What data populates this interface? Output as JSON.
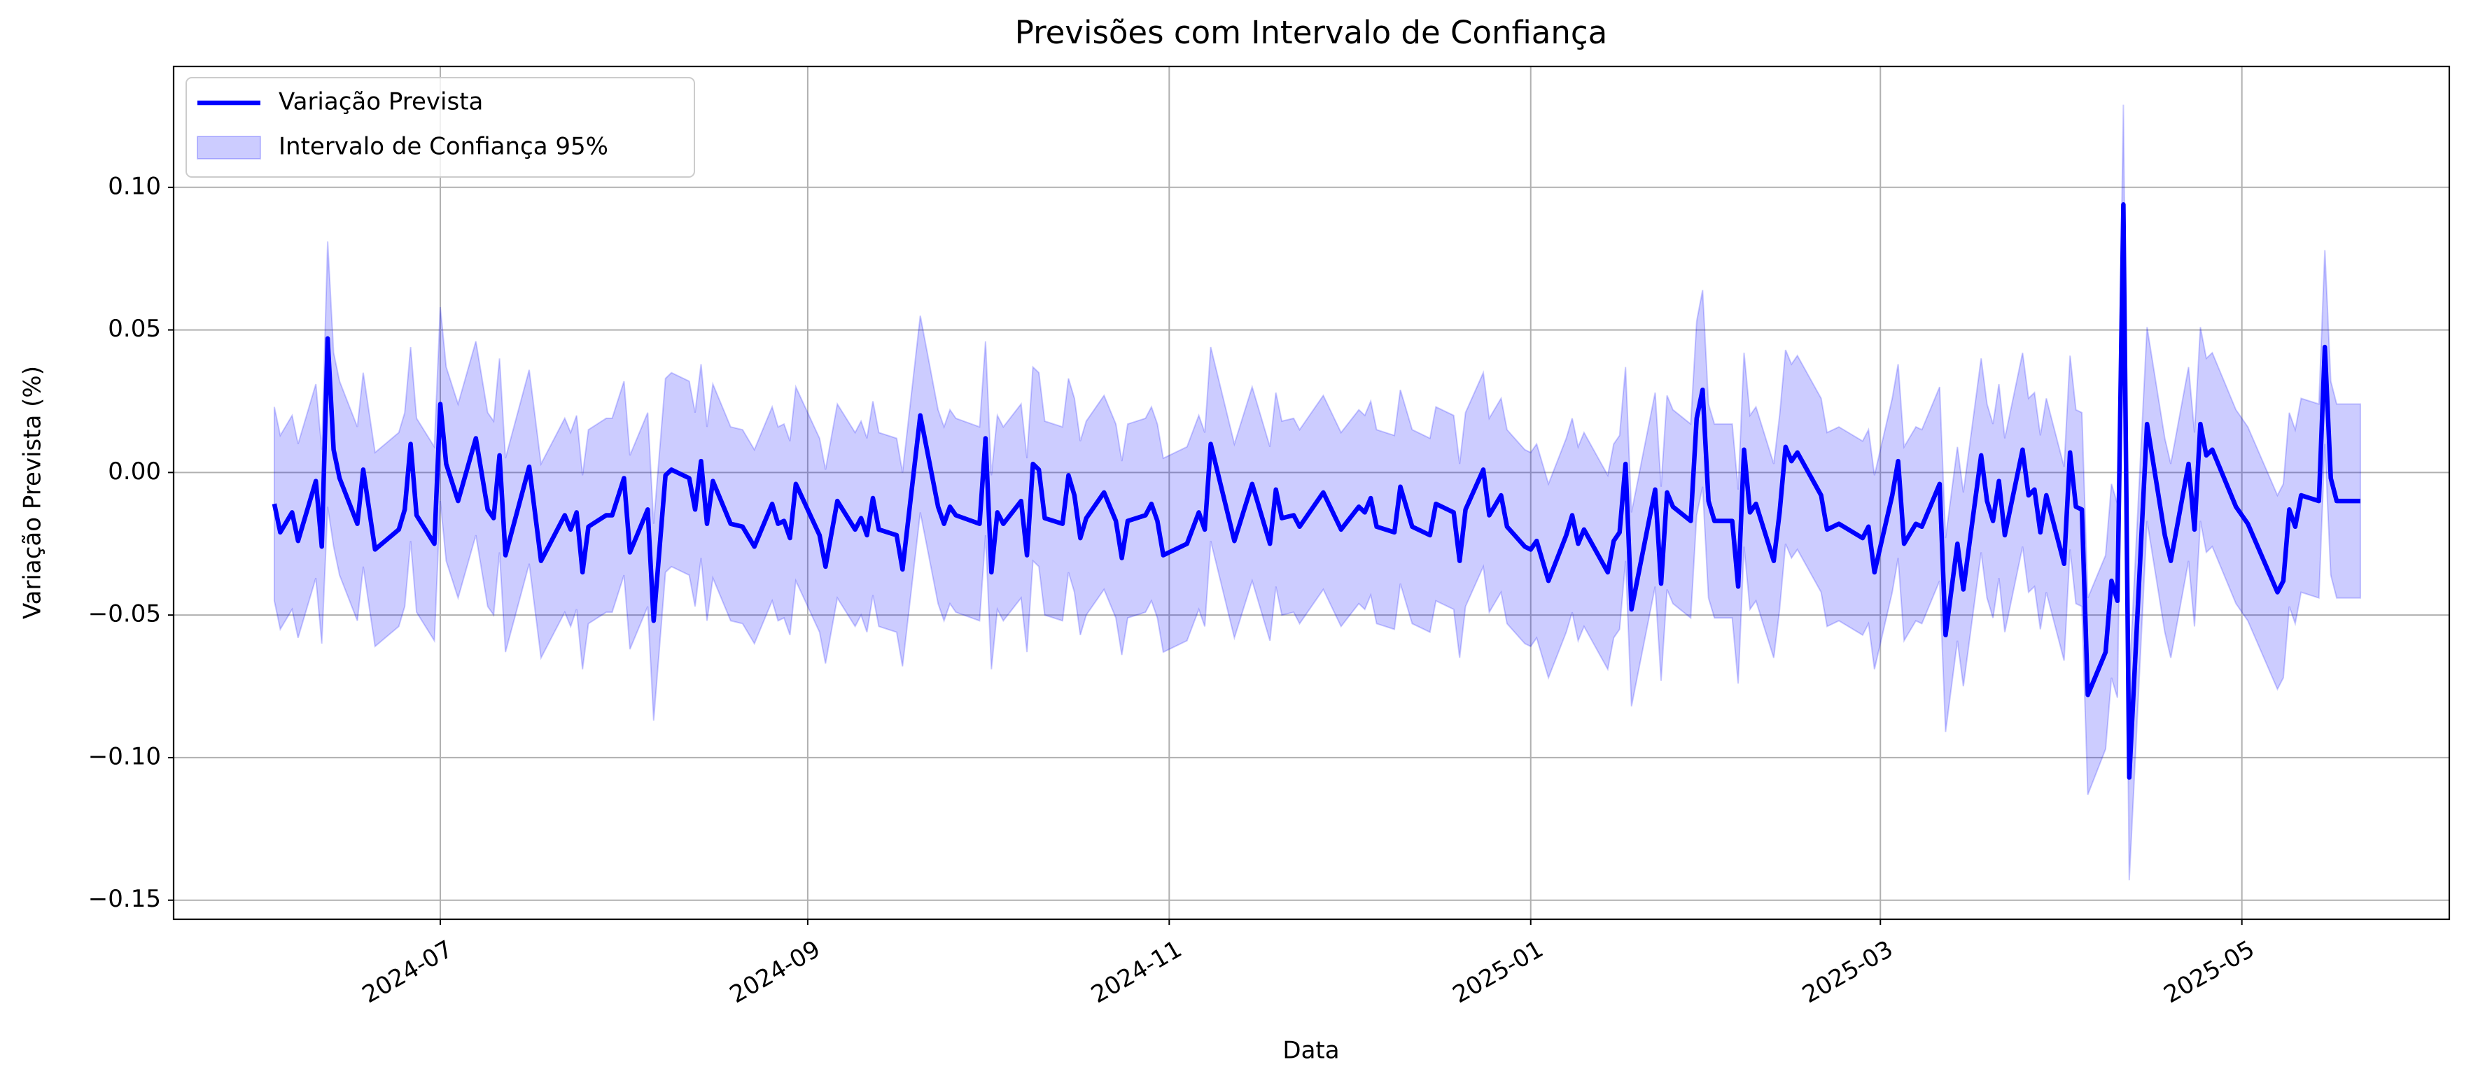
{
  "chart_data": {
    "type": "line",
    "title": "Previsões com Intervalo de Confiança",
    "x_label": "Data",
    "y_label": "Variação Prevista (%)",
    "x": [
      "2024-06-03",
      "2024-06-04",
      "2024-06-06",
      "2024-06-07",
      "2024-06-10",
      "2024-06-11",
      "2024-06-12",
      "2024-06-13",
      "2024-06-14",
      "2024-06-17",
      "2024-06-18",
      "2024-06-20",
      "2024-06-24",
      "2024-06-25",
      "2024-06-26",
      "2024-06-27",
      "2024-06-30",
      "2024-07-01",
      "2024-07-02",
      "2024-07-04",
      "2024-07-07",
      "2024-07-09",
      "2024-07-10",
      "2024-07-11",
      "2024-07-12",
      "2024-07-16",
      "2024-07-18",
      "2024-07-22",
      "2024-07-23",
      "2024-07-24",
      "2024-07-25",
      "2024-07-26",
      "2024-07-29",
      "2024-07-30",
      "2024-08-01",
      "2024-08-02",
      "2024-08-05",
      "2024-08-06",
      "2024-08-08",
      "2024-08-09",
      "2024-08-12",
      "2024-08-13",
      "2024-08-14",
      "2024-08-15",
      "2024-08-16",
      "2024-08-19",
      "2024-08-21",
      "2024-08-23",
      "2024-08-26",
      "2024-08-27",
      "2024-08-28",
      "2024-08-29",
      "2024-08-30",
      "2024-09-03",
      "2024-09-04",
      "2024-09-06",
      "2024-09-09",
      "2024-09-10",
      "2024-09-11",
      "2024-09-12",
      "2024-09-13",
      "2024-09-16",
      "2024-09-17",
      "2024-09-20",
      "2024-09-23",
      "2024-09-24",
      "2024-09-25",
      "2024-09-26",
      "2024-09-30",
      "2024-10-01",
      "2024-10-02",
      "2024-10-03",
      "2024-10-04",
      "2024-10-07",
      "2024-10-08",
      "2024-10-09",
      "2024-10-10",
      "2024-10-11",
      "2024-10-14",
      "2024-10-15",
      "2024-10-16",
      "2024-10-17",
      "2024-10-18",
      "2024-10-21",
      "2024-10-23",
      "2024-10-24",
      "2024-10-25",
      "2024-10-28",
      "2024-10-29",
      "2024-10-30",
      "2024-10-31",
      "2024-11-04",
      "2024-11-06",
      "2024-11-07",
      "2024-11-08",
      "2024-11-12",
      "2024-11-15",
      "2024-11-18",
      "2024-11-19",
      "2024-11-20",
      "2024-11-22",
      "2024-11-23",
      "2024-11-27",
      "2024-11-30",
      "2024-12-03",
      "2024-12-04",
      "2024-12-05",
      "2024-12-06",
      "2024-12-09",
      "2024-12-10",
      "2024-12-12",
      "2024-12-15",
      "2024-12-16",
      "2024-12-19",
      "2024-12-20",
      "2024-12-21",
      "2024-12-24",
      "2024-12-25",
      "2024-12-27",
      "2024-12-28",
      "2024-12-31",
      "2025-01-01",
      "2025-01-02",
      "2025-01-04",
      "2025-01-07",
      "2025-01-08",
      "2025-01-09",
      "2025-01-10",
      "2025-01-14",
      "2025-01-15",
      "2025-01-16",
      "2025-01-17",
      "2025-01-18",
      "2025-01-22",
      "2025-01-23",
      "2025-01-24",
      "2025-01-25",
      "2025-01-28",
      "2025-01-29",
      "2025-01-30",
      "2025-01-31",
      "2025-02-01",
      "2025-02-04",
      "2025-02-05",
      "2025-02-06",
      "2025-02-07",
      "2025-02-08",
      "2025-02-11",
      "2025-02-12",
      "2025-02-13",
      "2025-02-14",
      "2025-02-15",
      "2025-02-19",
      "2025-02-20",
      "2025-02-22",
      "2025-02-26",
      "2025-02-27",
      "2025-02-28",
      "2025-03-03",
      "2025-03-04",
      "2025-03-05",
      "2025-03-07",
      "2025-03-08",
      "2025-03-11",
      "2025-03-12",
      "2025-03-14",
      "2025-03-15",
      "2025-03-18",
      "2025-03-19",
      "2025-03-20",
      "2025-03-21",
      "2025-03-22",
      "2025-03-25",
      "2025-03-26",
      "2025-03-27",
      "2025-03-28",
      "2025-03-29",
      "2025-04-01",
      "2025-04-02",
      "2025-04-03",
      "2025-04-04",
      "2025-04-05",
      "2025-04-08",
      "2025-04-09",
      "2025-04-10",
      "2025-04-11",
      "2025-04-12",
      "2025-04-15",
      "2025-04-18",
      "2025-04-19",
      "2025-04-22",
      "2025-04-23",
      "2025-04-24",
      "2025-04-25",
      "2025-04-26",
      "2025-04-30",
      "2025-05-02",
      "2025-05-07",
      "2025-05-08",
      "2025-05-09",
      "2025-05-10",
      "2025-05-11",
      "2025-05-14",
      "2025-05-15",
      "2025-05-16",
      "2025-05-17",
      "2025-05-21"
    ],
    "series": [
      {
        "name": "Variação Prevista",
        "color": "#0000ff",
        "values": [
          -0.011,
          -0.021,
          -0.014,
          -0.024,
          -0.003,
          -0.026,
          0.047,
          0.008,
          -0.002,
          -0.018,
          0.001,
          -0.027,
          -0.02,
          -0.013,
          0.01,
          -0.015,
          -0.025,
          0.024,
          0.003,
          -0.01,
          0.012,
          -0.013,
          -0.016,
          0.006,
          -0.029,
          0.002,
          -0.031,
          -0.015,
          -0.02,
          -0.014,
          -0.035,
          -0.019,
          -0.015,
          -0.015,
          -0.002,
          -0.028,
          -0.013,
          -0.052,
          -0.001,
          0.001,
          -0.002,
          -0.013,
          0.004,
          -0.018,
          -0.003,
          -0.018,
          -0.019,
          -0.026,
          -0.011,
          -0.018,
          -0.017,
          -0.023,
          -0.004,
          -0.022,
          -0.033,
          -0.01,
          -0.02,
          -0.016,
          -0.022,
          -0.009,
          -0.02,
          -0.022,
          -0.034,
          0.02,
          -0.012,
          -0.018,
          -0.012,
          -0.015,
          -0.018,
          0.012,
          -0.035,
          -0.014,
          -0.018,
          -0.01,
          -0.029,
          0.003,
          0.001,
          -0.016,
          -0.018,
          -0.001,
          -0.008,
          -0.023,
          -0.016,
          -0.007,
          -0.017,
          -0.03,
          -0.017,
          -0.015,
          -0.011,
          -0.017,
          -0.029,
          -0.025,
          -0.014,
          -0.02,
          0.01,
          -0.024,
          -0.004,
          -0.025,
          -0.006,
          -0.016,
          -0.015,
          -0.019,
          -0.007,
          -0.02,
          -0.012,
          -0.014,
          -0.009,
          -0.019,
          -0.021,
          -0.005,
          -0.019,
          -0.022,
          -0.011,
          -0.014,
          -0.031,
          -0.013,
          0.001,
          -0.015,
          -0.008,
          -0.019,
          -0.026,
          -0.027,
          -0.024,
          -0.038,
          -0.022,
          -0.015,
          -0.025,
          -0.02,
          -0.035,
          -0.024,
          -0.021,
          0.003,
          -0.048,
          -0.006,
          -0.039,
          -0.007,
          -0.012,
          -0.017,
          0.019,
          0.029,
          -0.01,
          -0.017,
          -0.017,
          -0.04,
          0.008,
          -0.014,
          -0.011,
          -0.031,
          -0.014,
          0.009,
          0.004,
          0.007,
          -0.008,
          -0.02,
          -0.018,
          -0.023,
          -0.019,
          -0.035,
          -0.008,
          0.004,
          -0.025,
          -0.018,
          -0.019,
          -0.004,
          -0.057,
          -0.025,
          -0.041,
          0.006,
          -0.01,
          -0.017,
          -0.003,
          -0.022,
          0.008,
          -0.008,
          -0.006,
          -0.021,
          -0.008,
          -0.032,
          0.007,
          -0.012,
          -0.013,
          -0.078,
          -0.063,
          -0.038,
          -0.045,
          0.094,
          -0.107,
          0.017,
          -0.022,
          -0.031,
          0.003,
          -0.02,
          0.017,
          0.006,
          0.008,
          -0.012,
          -0.018,
          -0.042,
          -0.038,
          -0.013,
          -0.019,
          -0.008,
          -0.01,
          0.044,
          -0.002,
          -0.01,
          -0.01
        ]
      }
    ],
    "band": {
      "name": "Intervalo de Confiança 95%",
      "color": "#0000ff",
      "upper": [
        0.023,
        0.013,
        0.02,
        0.01,
        0.031,
        0.008,
        0.081,
        0.042,
        0.032,
        0.016,
        0.035,
        0.007,
        0.014,
        0.021,
        0.044,
        0.019,
        0.009,
        0.058,
        0.037,
        0.024,
        0.046,
        0.021,
        0.018,
        0.04,
        0.005,
        0.036,
        0.003,
        0.019,
        0.014,
        0.02,
        -0.001,
        0.015,
        0.019,
        0.019,
        0.032,
        0.006,
        0.021,
        -0.018,
        0.033,
        0.035,
        0.032,
        0.021,
        0.038,
        0.016,
        0.031,
        0.016,
        0.015,
        0.008,
        0.023,
        0.016,
        0.017,
        0.011,
        0.03,
        0.012,
        0.001,
        0.024,
        0.014,
        0.018,
        0.012,
        0.025,
        0.014,
        0.012,
        0.0,
        0.055,
        0.022,
        0.016,
        0.022,
        0.019,
        0.016,
        0.046,
        -0.001,
        0.02,
        0.016,
        0.024,
        0.005,
        0.037,
        0.035,
        0.018,
        0.016,
        0.033,
        0.026,
        0.011,
        0.018,
        0.027,
        0.017,
        0.004,
        0.017,
        0.019,
        0.023,
        0.017,
        0.005,
        0.009,
        0.02,
        0.014,
        0.044,
        0.01,
        0.03,
        0.009,
        0.028,
        0.018,
        0.019,
        0.015,
        0.027,
        0.014,
        0.022,
        0.02,
        0.025,
        0.015,
        0.013,
        0.029,
        0.015,
        0.012,
        0.023,
        0.02,
        0.003,
        0.021,
        0.035,
        0.019,
        0.026,
        0.015,
        0.008,
        0.007,
        0.01,
        -0.004,
        0.012,
        0.019,
        0.009,
        0.014,
        -0.001,
        0.01,
        0.013,
        0.037,
        -0.014,
        0.028,
        -0.005,
        0.027,
        0.022,
        0.017,
        0.053,
        0.064,
        0.024,
        0.017,
        0.017,
        -0.006,
        0.042,
        0.02,
        0.023,
        0.003,
        0.02,
        0.043,
        0.038,
        0.041,
        0.026,
        0.014,
        0.016,
        0.011,
        0.015,
        -0.001,
        0.026,
        0.038,
        0.009,
        0.016,
        0.015,
        0.03,
        -0.023,
        0.009,
        -0.007,
        0.04,
        0.024,
        0.017,
        0.031,
        0.012,
        0.042,
        0.026,
        0.028,
        0.013,
        0.026,
        0.002,
        0.041,
        0.022,
        0.021,
        -0.044,
        -0.029,
        -0.004,
        -0.011,
        0.129,
        -0.073,
        0.051,
        0.012,
        0.003,
        0.037,
        0.014,
        0.051,
        0.04,
        0.042,
        0.022,
        0.016,
        -0.008,
        -0.004,
        0.021,
        0.015,
        0.026,
        0.024,
        0.078,
        0.032,
        0.024,
        0.024
      ],
      "lower": [
        -0.045,
        -0.055,
        -0.048,
        -0.058,
        -0.037,
        -0.06,
        -0.012,
        -0.026,
        -0.036,
        -0.052,
        -0.033,
        -0.061,
        -0.054,
        -0.047,
        -0.024,
        -0.049,
        -0.059,
        -0.01,
        -0.031,
        -0.044,
        -0.022,
        -0.047,
        -0.05,
        -0.028,
        -0.063,
        -0.032,
        -0.065,
        -0.049,
        -0.054,
        -0.048,
        -0.069,
        -0.053,
        -0.049,
        -0.049,
        -0.036,
        -0.062,
        -0.047,
        -0.087,
        -0.035,
        -0.033,
        -0.036,
        -0.047,
        -0.03,
        -0.052,
        -0.037,
        -0.052,
        -0.053,
        -0.06,
        -0.045,
        -0.052,
        -0.051,
        -0.057,
        -0.038,
        -0.056,
        -0.067,
        -0.044,
        -0.054,
        -0.05,
        -0.056,
        -0.043,
        -0.054,
        -0.056,
        -0.068,
        -0.014,
        -0.046,
        -0.052,
        -0.046,
        -0.049,
        -0.052,
        -0.022,
        -0.069,
        -0.048,
        -0.052,
        -0.044,
        -0.063,
        -0.031,
        -0.033,
        -0.05,
        -0.052,
        -0.035,
        -0.042,
        -0.057,
        -0.05,
        -0.041,
        -0.051,
        -0.064,
        -0.051,
        -0.049,
        -0.045,
        -0.051,
        -0.063,
        -0.059,
        -0.048,
        -0.054,
        -0.024,
        -0.058,
        -0.038,
        -0.059,
        -0.04,
        -0.05,
        -0.049,
        -0.053,
        -0.041,
        -0.054,
        -0.046,
        -0.048,
        -0.043,
        -0.053,
        -0.055,
        -0.039,
        -0.053,
        -0.056,
        -0.045,
        -0.048,
        -0.065,
        -0.047,
        -0.033,
        -0.049,
        -0.042,
        -0.053,
        -0.06,
        -0.061,
        -0.058,
        -0.072,
        -0.056,
        -0.049,
        -0.059,
        -0.054,
        -0.069,
        -0.058,
        -0.055,
        -0.031,
        -0.082,
        -0.04,
        -0.073,
        -0.041,
        -0.046,
        -0.051,
        -0.015,
        -0.005,
        -0.044,
        -0.051,
        -0.051,
        -0.074,
        -0.026,
        -0.048,
        -0.045,
        -0.065,
        -0.048,
        -0.025,
        -0.03,
        -0.027,
        -0.042,
        -0.054,
        -0.052,
        -0.057,
        -0.053,
        -0.069,
        -0.042,
        -0.03,
        -0.059,
        -0.052,
        -0.053,
        -0.038,
        -0.091,
        -0.059,
        -0.075,
        -0.028,
        -0.044,
        -0.051,
        -0.037,
        -0.056,
        -0.026,
        -0.042,
        -0.04,
        -0.055,
        -0.042,
        -0.066,
        -0.027,
        -0.046,
        -0.047,
        -0.113,
        -0.097,
        -0.072,
        -0.079,
        0.06,
        -0.143,
        -0.017,
        -0.056,
        -0.065,
        -0.031,
        -0.054,
        -0.017,
        -0.028,
        -0.026,
        -0.046,
        -0.052,
        -0.076,
        -0.072,
        -0.047,
        -0.053,
        -0.042,
        -0.044,
        0.01,
        -0.036,
        -0.044,
        -0.044
      ]
    },
    "xlim": [
      "2024-05-17",
      "2025-06-05"
    ],
    "xticks": [
      "2024-07",
      "2024-09",
      "2024-11",
      "2025-01",
      "2025-03",
      "2025-05"
    ],
    "ylim": [
      -0.1567,
      0.1424
    ],
    "yticks": [
      {
        "value": -0.15,
        "label": "−0.15"
      },
      {
        "value": -0.1,
        "label": "−0.10"
      },
      {
        "value": -0.05,
        "label": "−0.05"
      },
      {
        "value": 0,
        "label": "0.00"
      },
      0.05,
      {
        "value": 0.1,
        "label": "0.10"
      }
    ],
    "grid": true,
    "legend": "upper left"
  }
}
